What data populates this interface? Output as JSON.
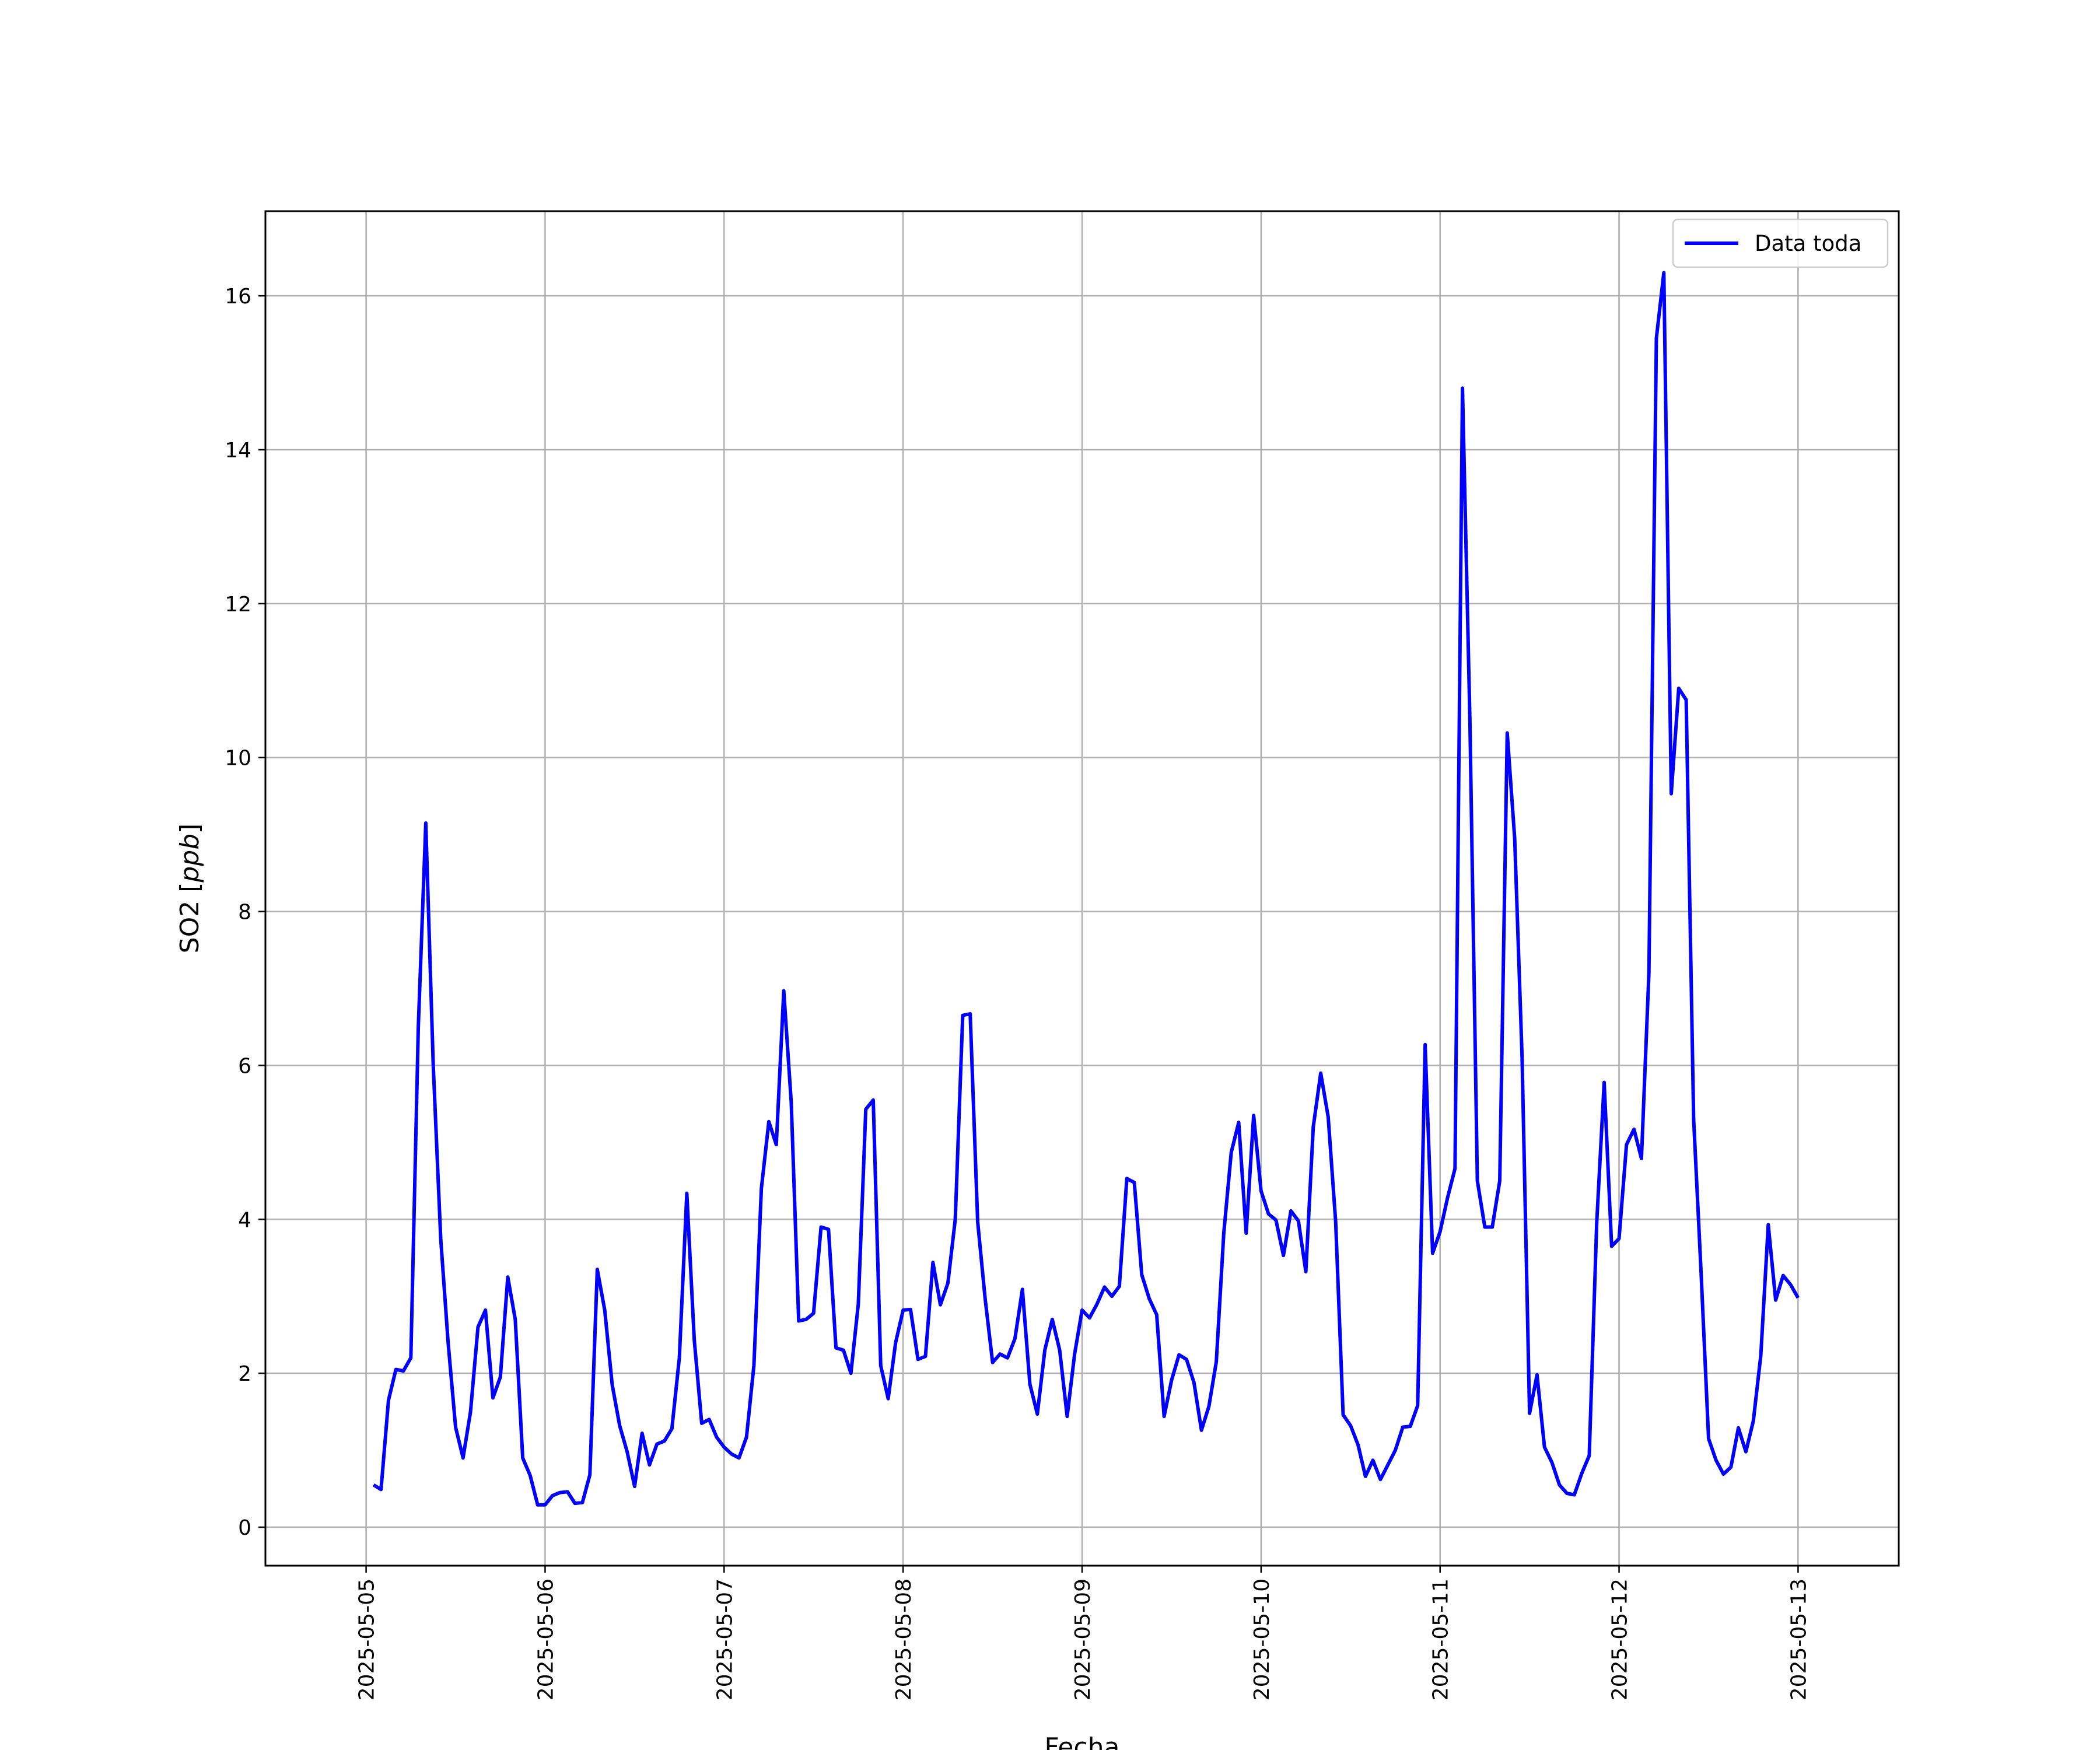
{
  "chart_data": {
    "type": "line",
    "xlabel": "Fecha",
    "ylabel_prefix": "SO2 [",
    "ylabel_unit": "ppb",
    "ylabel_suffix": "]",
    "x_tick_labels": [
      "2025-05-05",
      "2025-05-06",
      "2025-05-07",
      "2025-05-08",
      "2025-05-09",
      "2025-05-10",
      "2025-05-11",
      "2025-05-12",
      "2025-05-13"
    ],
    "y_tick_labels": [
      "0",
      "2",
      "4",
      "6",
      "8",
      "10",
      "12",
      "14",
      "16"
    ],
    "xlim": [
      "2025-05-04 10:30",
      "2025-05-13 13:30"
    ],
    "ylim": [
      -0.5,
      17.1
    ],
    "grid": true,
    "legend_position": "top-right",
    "colors": {
      "series": "#0000ff",
      "grid": "#b0b0b0",
      "frame": "#000000"
    },
    "series": [
      {
        "name": "Data toda",
        "x_start": "2025-05-05 01:00",
        "x_step_hours": 1,
        "values": [
          0.55,
          0.49,
          1.65,
          2.05,
          2.03,
          2.2,
          6.5,
          9.15,
          6.0,
          3.75,
          2.4,
          1.3,
          0.9,
          1.5,
          2.6,
          2.82,
          1.68,
          1.95,
          3.25,
          2.7,
          0.9,
          0.67,
          0.29,
          0.29,
          0.41,
          0.45,
          0.46,
          0.31,
          0.32,
          0.68,
          3.35,
          2.82,
          1.85,
          1.32,
          0.98,
          0.53,
          1.22,
          0.81,
          1.08,
          1.12,
          1.28,
          2.2,
          4.34,
          2.43,
          1.35,
          1.4,
          1.17,
          1.04,
          0.95,
          0.9,
          1.17,
          2.1,
          4.4,
          5.27,
          4.97,
          6.97,
          5.52,
          2.68,
          2.7,
          2.78,
          3.9,
          3.87,
          2.33,
          2.3,
          2.0,
          2.9,
          5.43,
          5.55,
          2.1,
          1.67,
          2.4,
          2.82,
          2.83,
          2.18,
          2.22,
          3.44,
          2.89,
          3.17,
          4.0,
          6.65,
          6.67,
          3.97,
          2.97,
          2.14,
          2.25,
          2.2,
          2.45,
          3.09,
          1.86,
          1.47,
          2.3,
          2.7,
          2.3,
          1.44,
          2.25,
          2.82,
          2.72,
          2.9,
          3.12,
          3.0,
          3.13,
          4.53,
          4.48,
          3.28,
          2.97,
          2.76,
          1.44,
          1.91,
          2.24,
          2.18,
          1.88,
          1.26,
          1.57,
          2.15,
          3.82,
          4.87,
          5.26,
          3.82,
          5.35,
          4.37,
          4.07,
          3.99,
          3.53,
          4.11,
          3.98,
          3.32,
          5.2,
          5.9,
          5.33,
          3.97,
          1.46,
          1.32,
          1.07,
          0.66,
          0.87,
          0.62,
          0.81,
          1.0,
          1.3,
          1.31,
          1.58,
          6.27,
          3.56,
          3.84,
          4.28,
          4.66,
          14.8,
          10.5,
          4.5,
          3.9,
          3.9,
          4.5,
          10.32,
          8.95,
          6.1,
          1.48,
          1.98,
          1.04,
          0.84,
          0.55,
          0.44,
          0.42,
          0.7,
          0.93,
          3.95,
          5.78,
          3.65,
          3.75,
          4.97,
          5.17,
          4.79,
          7.2,
          15.45,
          16.3,
          9.53,
          10.9,
          10.75,
          5.3,
          3.3,
          1.15,
          0.87,
          0.69,
          0.78,
          1.29,
          0.98,
          1.38,
          2.23,
          3.93,
          2.95,
          3.27,
          3.15,
          2.98
        ]
      }
    ]
  }
}
